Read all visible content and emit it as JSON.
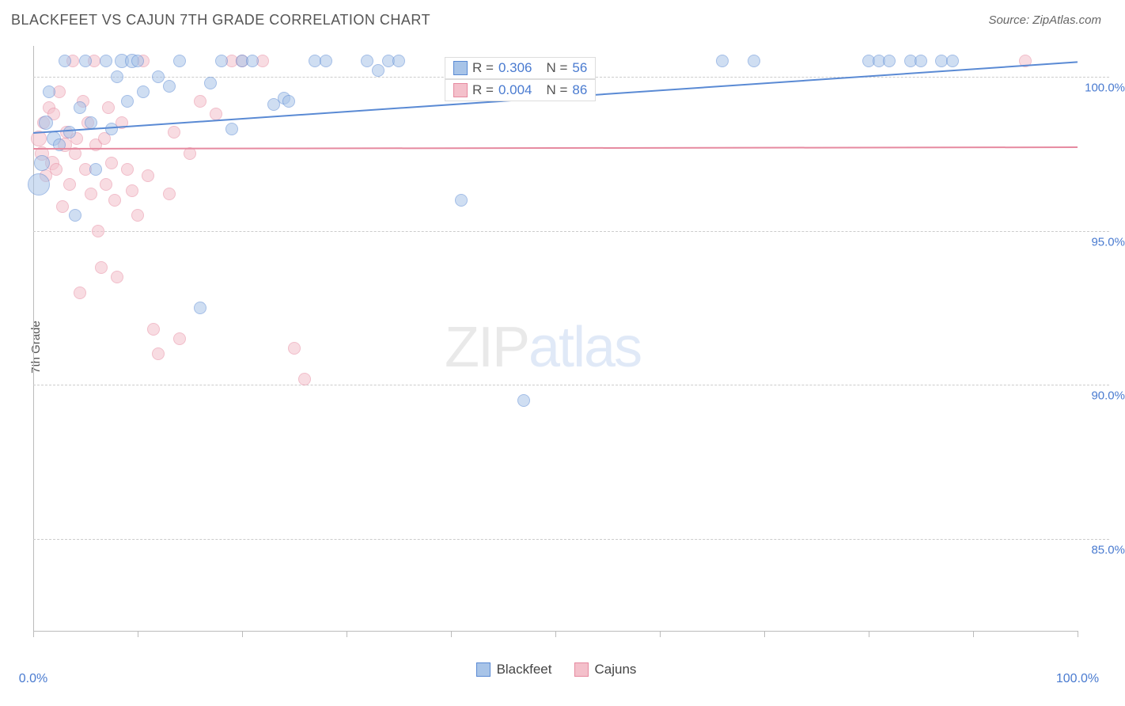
{
  "header": {
    "title": "BLACKFEET VS CAJUN 7TH GRADE CORRELATION CHART",
    "source": "Source: ZipAtlas.com"
  },
  "watermark": {
    "part1": "ZIP",
    "part2": "atlas"
  },
  "chart": {
    "type": "scatter",
    "y_axis_title": "7th Grade",
    "xlim": [
      0,
      100
    ],
    "ylim": [
      82,
      101
    ],
    "x_ticks": [
      0,
      10,
      20,
      30,
      40,
      50,
      60,
      70,
      80,
      90,
      100
    ],
    "x_tick_labels": {
      "0": "0.0%",
      "100": "100.0%"
    },
    "y_ticks": [
      85,
      90,
      95,
      100
    ],
    "y_tick_labels": [
      "85.0%",
      "90.0%",
      "95.0%",
      "100.0%"
    ],
    "grid_color": "#cccccc",
    "axis_color": "#bbbbbb",
    "background_color": "#ffffff",
    "tick_label_color": "#4a7bd0",
    "axis_title_color": "#555555",
    "label_fontsize": 15,
    "marker_base_radius": 8,
    "marker_opacity": 0.55,
    "series": [
      {
        "name": "Blackfeet",
        "fill_color": "#a8c4e8",
        "stroke_color": "#5a8ad4",
        "trend": {
          "y_at_x0": 98.2,
          "y_at_x100": 100.5,
          "line_width": 2
        },
        "stats": {
          "R": "0.306",
          "N": "56"
        },
        "points": [
          {
            "x": 0.5,
            "y": 96.5,
            "r": 14
          },
          {
            "x": 0.8,
            "y": 97.2,
            "r": 10
          },
          {
            "x": 1.2,
            "y": 98.5,
            "r": 9
          },
          {
            "x": 1.5,
            "y": 99.5,
            "r": 8
          },
          {
            "x": 2.0,
            "y": 98.0,
            "r": 9
          },
          {
            "x": 2.5,
            "y": 97.8,
            "r": 8
          },
          {
            "x": 3.0,
            "y": 100.5,
            "r": 8
          },
          {
            "x": 3.5,
            "y": 98.2,
            "r": 8
          },
          {
            "x": 4.0,
            "y": 95.5,
            "r": 8
          },
          {
            "x": 4.5,
            "y": 99.0,
            "r": 8
          },
          {
            "x": 5.0,
            "y": 100.5,
            "r": 8
          },
          {
            "x": 5.5,
            "y": 98.5,
            "r": 8
          },
          {
            "x": 6.0,
            "y": 97.0,
            "r": 8
          },
          {
            "x": 7.0,
            "y": 100.5,
            "r": 8
          },
          {
            "x": 7.5,
            "y": 98.3,
            "r": 8
          },
          {
            "x": 8.0,
            "y": 100.0,
            "r": 8
          },
          {
            "x": 8.5,
            "y": 100.5,
            "r": 9
          },
          {
            "x": 9.0,
            "y": 99.2,
            "r": 8
          },
          {
            "x": 9.5,
            "y": 100.5,
            "r": 9
          },
          {
            "x": 10.0,
            "y": 100.5,
            "r": 8
          },
          {
            "x": 10.5,
            "y": 99.5,
            "r": 8
          },
          {
            "x": 12.0,
            "y": 100.0,
            "r": 8
          },
          {
            "x": 13.0,
            "y": 99.7,
            "r": 8
          },
          {
            "x": 14.0,
            "y": 100.5,
            "r": 8
          },
          {
            "x": 16.0,
            "y": 92.5,
            "r": 8
          },
          {
            "x": 17.0,
            "y": 99.8,
            "r": 8
          },
          {
            "x": 18.0,
            "y": 100.5,
            "r": 8
          },
          {
            "x": 19.0,
            "y": 98.3,
            "r": 8
          },
          {
            "x": 20.0,
            "y": 100.5,
            "r": 8
          },
          {
            "x": 21.0,
            "y": 100.5,
            "r": 8
          },
          {
            "x": 23.0,
            "y": 99.1,
            "r": 8
          },
          {
            "x": 24.0,
            "y": 99.3,
            "r": 8
          },
          {
            "x": 24.5,
            "y": 99.2,
            "r": 8
          },
          {
            "x": 27.0,
            "y": 100.5,
            "r": 8
          },
          {
            "x": 28.0,
            "y": 100.5,
            "r": 8
          },
          {
            "x": 32.0,
            "y": 100.5,
            "r": 8
          },
          {
            "x": 33.0,
            "y": 100.2,
            "r": 8
          },
          {
            "x": 34.0,
            "y": 100.5,
            "r": 8
          },
          {
            "x": 35.0,
            "y": 100.5,
            "r": 8
          },
          {
            "x": 41.0,
            "y": 96.0,
            "r": 8
          },
          {
            "x": 47.0,
            "y": 89.5,
            "r": 8
          },
          {
            "x": 66.0,
            "y": 100.5,
            "r": 8
          },
          {
            "x": 69.0,
            "y": 100.5,
            "r": 8
          },
          {
            "x": 80.0,
            "y": 100.5,
            "r": 8
          },
          {
            "x": 81.0,
            "y": 100.5,
            "r": 8
          },
          {
            "x": 82.0,
            "y": 100.5,
            "r": 8
          },
          {
            "x": 84.0,
            "y": 100.5,
            "r": 8
          },
          {
            "x": 85.0,
            "y": 100.5,
            "r": 8
          },
          {
            "x": 87.0,
            "y": 100.5,
            "r": 8
          },
          {
            "x": 88.0,
            "y": 100.5,
            "r": 8
          }
        ]
      },
      {
        "name": "Cajuns",
        "fill_color": "#f4c0cb",
        "stroke_color": "#e68aa0",
        "trend": {
          "y_at_x0": 97.7,
          "y_at_x100": 97.75,
          "line_width": 2
        },
        "stats": {
          "R": "0.004",
          "N": "86"
        },
        "points": [
          {
            "x": 0.5,
            "y": 98.0,
            "r": 10
          },
          {
            "x": 0.8,
            "y": 97.5,
            "r": 9
          },
          {
            "x": 1.0,
            "y": 98.5,
            "r": 8
          },
          {
            "x": 1.2,
            "y": 96.8,
            "r": 8
          },
          {
            "x": 1.5,
            "y": 99.0,
            "r": 8
          },
          {
            "x": 1.8,
            "y": 97.2,
            "r": 9
          },
          {
            "x": 2.0,
            "y": 98.8,
            "r": 8
          },
          {
            "x": 2.2,
            "y": 97.0,
            "r": 8
          },
          {
            "x": 2.5,
            "y": 99.5,
            "r": 8
          },
          {
            "x": 2.8,
            "y": 95.8,
            "r": 8
          },
          {
            "x": 3.0,
            "y": 97.8,
            "r": 9
          },
          {
            "x": 3.2,
            "y": 98.2,
            "r": 8
          },
          {
            "x": 3.5,
            "y": 96.5,
            "r": 8
          },
          {
            "x": 3.8,
            "y": 100.5,
            "r": 8
          },
          {
            "x": 4.0,
            "y": 97.5,
            "r": 8
          },
          {
            "x": 4.2,
            "y": 98.0,
            "r": 8
          },
          {
            "x": 4.5,
            "y": 93.0,
            "r": 8
          },
          {
            "x": 4.8,
            "y": 99.2,
            "r": 8
          },
          {
            "x": 5.0,
            "y": 97.0,
            "r": 8
          },
          {
            "x": 5.2,
            "y": 98.5,
            "r": 8
          },
          {
            "x": 5.5,
            "y": 96.2,
            "r": 8
          },
          {
            "x": 5.8,
            "y": 100.5,
            "r": 8
          },
          {
            "x": 6.0,
            "y": 97.8,
            "r": 8
          },
          {
            "x": 6.2,
            "y": 95.0,
            "r": 8
          },
          {
            "x": 6.5,
            "y": 93.8,
            "r": 8
          },
          {
            "x": 6.8,
            "y": 98.0,
            "r": 8
          },
          {
            "x": 7.0,
            "y": 96.5,
            "r": 8
          },
          {
            "x": 7.2,
            "y": 99.0,
            "r": 8
          },
          {
            "x": 7.5,
            "y": 97.2,
            "r": 8
          },
          {
            "x": 7.8,
            "y": 96.0,
            "r": 8
          },
          {
            "x": 8.0,
            "y": 93.5,
            "r": 8
          },
          {
            "x": 8.5,
            "y": 98.5,
            "r": 8
          },
          {
            "x": 9.0,
            "y": 97.0,
            "r": 8
          },
          {
            "x": 9.5,
            "y": 96.3,
            "r": 8
          },
          {
            "x": 10.0,
            "y": 95.5,
            "r": 8
          },
          {
            "x": 10.5,
            "y": 100.5,
            "r": 8
          },
          {
            "x": 11.0,
            "y": 96.8,
            "r": 8
          },
          {
            "x": 11.5,
            "y": 91.8,
            "r": 8
          },
          {
            "x": 12.0,
            "y": 91.0,
            "r": 8
          },
          {
            "x": 13.0,
            "y": 96.2,
            "r": 8
          },
          {
            "x": 13.5,
            "y": 98.2,
            "r": 8
          },
          {
            "x": 14.0,
            "y": 91.5,
            "r": 8
          },
          {
            "x": 15.0,
            "y": 97.5,
            "r": 8
          },
          {
            "x": 16.0,
            "y": 99.2,
            "r": 8
          },
          {
            "x": 17.5,
            "y": 98.8,
            "r": 8
          },
          {
            "x": 19.0,
            "y": 100.5,
            "r": 8
          },
          {
            "x": 20.0,
            "y": 100.5,
            "r": 8
          },
          {
            "x": 22.0,
            "y": 100.5,
            "r": 8
          },
          {
            "x": 25.0,
            "y": 91.2,
            "r": 8
          },
          {
            "x": 26.0,
            "y": 90.2,
            "r": 8
          },
          {
            "x": 95.0,
            "y": 100.5,
            "r": 8
          }
        ]
      }
    ],
    "stats_box": {
      "label_R": "R =",
      "label_N": "N =",
      "position_top_pct": 3
    },
    "legend": {
      "items": [
        {
          "label": "Blackfeet",
          "fill": "#a8c4e8",
          "stroke": "#5a8ad4"
        },
        {
          "label": "Cajuns",
          "fill": "#f4c0cb",
          "stroke": "#e68aa0"
        }
      ]
    }
  }
}
